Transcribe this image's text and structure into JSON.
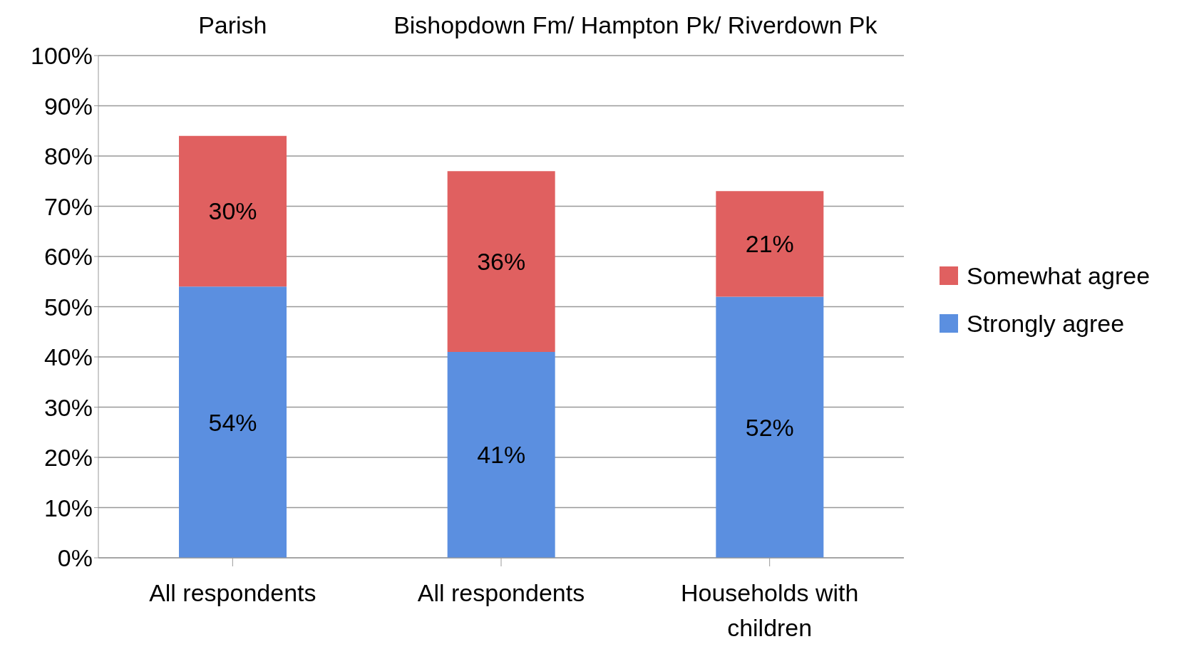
{
  "chart_data": {
    "type": "bar",
    "stacked": true,
    "annotations": [
      "Parish",
      "Bishopdown Fm/ Hampton Pk/ Riverdown Pk"
    ],
    "categories": [
      "All respondents",
      "All respondents",
      "Households with children"
    ],
    "series": [
      {
        "name": "Strongly agree",
        "color": "#5b8fe0",
        "values": [
          54,
          41,
          52
        ],
        "value_labels": [
          "54%",
          "41%",
          "52%"
        ]
      },
      {
        "name": "Somewhat agree",
        "color": "#e06060",
        "values": [
          30,
          36,
          21
        ],
        "value_labels": [
          "30%",
          "36%",
          "21%"
        ]
      }
    ],
    "ylim": [
      0,
      100
    ],
    "yticks": [
      {
        "value": 0,
        "label": "0%"
      },
      {
        "value": 10,
        "label": "10%"
      },
      {
        "value": 20,
        "label": "20%"
      },
      {
        "value": 30,
        "label": "30%"
      },
      {
        "value": 40,
        "label": "40%"
      },
      {
        "value": 50,
        "label": "50%"
      },
      {
        "value": 60,
        "label": "60%"
      },
      {
        "value": 70,
        "label": "70%"
      },
      {
        "value": 80,
        "label": "80%"
      },
      {
        "value": 90,
        "label": "90%"
      },
      {
        "value": 100,
        "label": "100%"
      }
    ],
    "grid": "y",
    "legend": "right"
  }
}
